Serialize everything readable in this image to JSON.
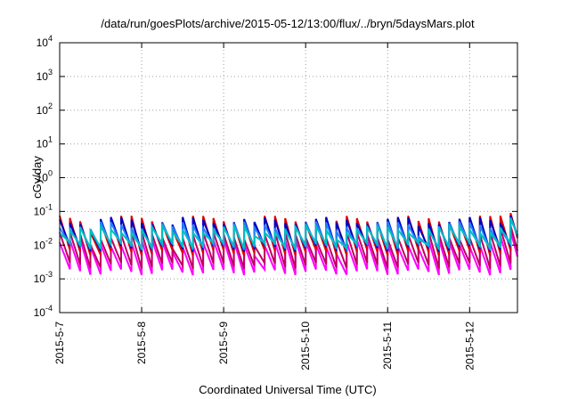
{
  "chart_data": {
    "type": "line",
    "title": "/data/run/goesPlots/archive/2015-05-12/13:00/flux/../bryn/5daysMars.plot",
    "xlabel": "Coordinated Universal Time (UTC)",
    "ylabel": "cGy/day",
    "y_scale": "log",
    "ylim": [
      0.0001,
      10000
    ],
    "xlim": [
      "2015-05-07 00:00",
      "2015-05-12 14:00"
    ],
    "y_ticks": [
      {
        "base": "10",
        "exp": "-4"
      },
      {
        "base": "10",
        "exp": "-3"
      },
      {
        "base": "10",
        "exp": "-2"
      },
      {
        "base": "10",
        "exp": "-1"
      },
      {
        "base": "10",
        "exp": "0"
      },
      {
        "base": "10",
        "exp": "1"
      },
      {
        "base": "10",
        "exp": "2"
      },
      {
        "base": "10",
        "exp": "3"
      },
      {
        "base": "10",
        "exp": "4"
      }
    ],
    "x_ticks": [
      "2015-5-7",
      "2015-5-8",
      "2015-5-9",
      "2015-5-10",
      "2015-5-11",
      "2015-5-12"
    ],
    "grid": true,
    "legend": "none",
    "pattern": {
      "sawtooth_period_hours": 3,
      "note_peaks": "sharp rise then decay within each period"
    },
    "series": [
      {
        "color": "#ff00ff",
        "peak": 0.012,
        "trough": 0.0016
      },
      {
        "color": "#c00060",
        "peak": 0.02,
        "trough": 0.0025
      },
      {
        "color": "#e00000",
        "peak": 0.06,
        "trough": 0.006
      },
      {
        "color": "#0000c0",
        "peak": 0.055,
        "trough": 0.008
      },
      {
        "color": "#2080ff",
        "peak": 0.04,
        "trough": 0.009
      },
      {
        "color": "#00c0c0",
        "peak": 0.03,
        "trough": 0.01
      }
    ]
  }
}
